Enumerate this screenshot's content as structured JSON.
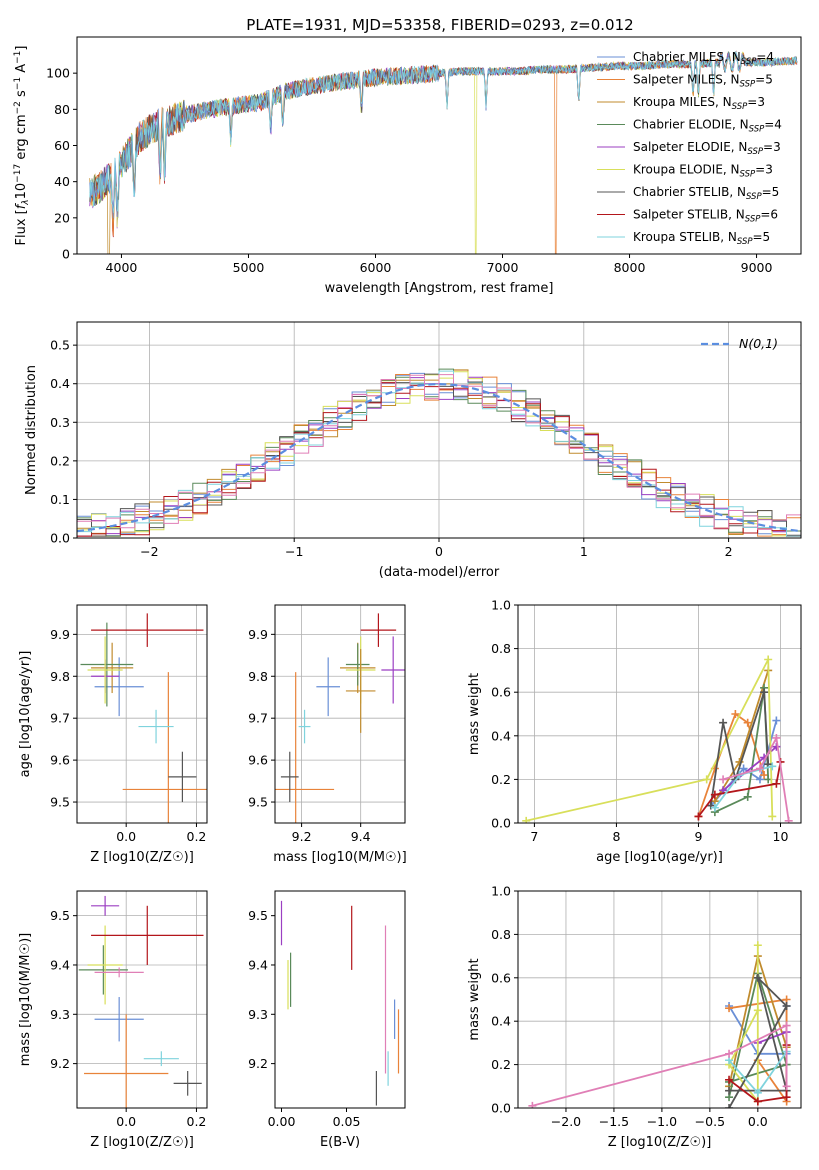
{
  "figure": {
    "title": "PLATE=1931, MJD=53358, FIBERID=0293, z=0.012"
  },
  "series_styles": [
    {
      "name": "Chabrier MILES, N_SSP=4",
      "color": "#6a8fd6"
    },
    {
      "name": "Salpeter MILES, N_SSP=5",
      "color": "#e8833a"
    },
    {
      "name": "Kroupa MILES, N_SSP=3",
      "color": "#c08b2e"
    },
    {
      "name": "Chabrier ELODIE, N_SSP=4",
      "color": "#5a8a5a"
    },
    {
      "name": "Salpeter ELODIE, N_SSP=3",
      "color": "#9b3fc2"
    },
    {
      "name": "Kroupa ELODIE, N_SSP=3",
      "color": "#d8df5a"
    },
    {
      "name": "Chabrier STELIB, N_SSP=5",
      "color": "#555555"
    },
    {
      "name": "Salpeter STELIB, N_SSP=6",
      "color": "#b3161b"
    },
    {
      "name": "Kroupa STELIB, N_SSP=5",
      "color": "#7fd3dd"
    }
  ],
  "chart_data": [
    {
      "id": "spectrum",
      "type": "line",
      "title": "PLATE=1931, MJD=53358, FIBERID=0293, z=0.012",
      "xlabel": "wavelength [Angstrom, rest frame]",
      "ylabel": "Flux [f_λ 10^-17 erg cm^-2 s^-1 A^-1]",
      "xlim": [
        3650,
        9350
      ],
      "ylim": [
        0,
        120
      ],
      "xticks": [
        4000,
        5000,
        6000,
        7000,
        8000,
        9000
      ],
      "yticks": [
        0,
        20,
        40,
        60,
        80,
        100
      ],
      "legend_position": "top-right",
      "legend": [
        "Chabrier MILES, N_SSP=4",
        "Salpeter MILES, N_SSP=5",
        "Kroupa MILES, N_SSP=3",
        "Chabrier ELODIE, N_SSP=4",
        "Salpeter ELODIE, N_SSP=3",
        "Kroupa ELODIE, N_SSP=3",
        "Chabrier STELIB, N_SSP=5",
        "Salpeter STELIB, N_SSP=6",
        "Kroupa STELIB, N_SSP=5"
      ],
      "continuum": {
        "x": [
          3750,
          3850,
          3950,
          4050,
          4150,
          4300,
          4500,
          4700,
          4900,
          5100,
          5300,
          5500,
          5700,
          5900,
          6100,
          6300,
          6500,
          6700,
          6900,
          7100,
          7300,
          7500,
          7700,
          7900,
          8100,
          8300,
          8500,
          8700,
          8900,
          9100,
          9300
        ],
        "y": [
          33,
          38,
          45,
          55,
          65,
          72,
          77,
          80,
          82,
          84,
          90,
          93,
          95,
          97,
          98,
          99,
          100,
          101,
          101,
          101,
          102,
          102,
          103,
          104,
          104,
          105,
          105,
          106,
          106,
          106,
          107
        ]
      },
      "dropouts": [
        {
          "x": 3900,
          "series": "Kroupa MILES, N_SSP=3"
        },
        {
          "x": 6790,
          "series": "Kroupa ELODIE, N_SSP=3"
        },
        {
          "x": 7420,
          "series": "Salpeter MILES, N_SSP=5"
        }
      ]
    },
    {
      "id": "residuals",
      "type": "histogram",
      "xlabel": "(data-model)/error",
      "ylabel": "Normed distribution",
      "xlim": [
        -2.5,
        2.5
      ],
      "ylim": [
        0,
        0.56
      ],
      "xticks": [
        -2,
        -1,
        0,
        1,
        2
      ],
      "yticks": [
        0.0,
        0.1,
        0.2,
        0.3,
        0.4,
        0.5
      ],
      "grid": true,
      "bin_width": 0.1,
      "reference_curve": {
        "name": "N(0,1)",
        "style": "dashed",
        "color": "#5b8ee0"
      },
      "legend_position": "top-right"
    },
    {
      "id": "age_vs_Z",
      "type": "errorbar",
      "xlabel": "Z [log10(Z/Z☉)]",
      "ylabel": "age [log10(age/yr)]",
      "xlim": [
        -0.14,
        0.23
      ],
      "ylim": [
        9.45,
        9.97
      ],
      "xticks": [
        0.0,
        0.2
      ],
      "yticks": [
        9.5,
        9.6,
        9.7,
        9.8,
        9.9
      ],
      "grid": true,
      "points": [
        {
          "series": "Chabrier MILES, N_SSP=4",
          "x": -0.02,
          "xerr": 0.07,
          "y": 9.775,
          "yerr": 0.07
        },
        {
          "series": "Salpeter MILES, N_SSP=5",
          "x": 0.12,
          "xerr": 0.13,
          "y": 9.53,
          "yerr": 0.28
        },
        {
          "series": "Kroupa MILES, N_SSP=3",
          "x": -0.04,
          "xerr": 0.06,
          "y": 9.82,
          "yerr": 0.06
        },
        {
          "series": "Chabrier ELODIE, N_SSP=4",
          "x": -0.055,
          "xerr": 0.075,
          "y": 9.828,
          "yerr": 0.1
        },
        {
          "series": "Salpeter ELODIE, N_SSP=3",
          "x": -0.06,
          "xerr": 0.04,
          "y": 9.8,
          "yerr": 0.04
        },
        {
          "series": "Kroupa ELODIE, N_SSP=3",
          "x": -0.06,
          "xerr": 0.05,
          "y": 9.815,
          "yerr": 0.08
        },
        {
          "series": "Chabrier STELIB, N_SSP=5",
          "x": 0.16,
          "xerr": 0.04,
          "y": 9.56,
          "yerr": 0.06
        },
        {
          "series": "Salpeter STELIB, N_SSP=6",
          "x": 0.06,
          "xerr": 0.16,
          "y": 9.91,
          "yerr": 0.04
        },
        {
          "series": "Kroupa STELIB, N_SSP=5",
          "x": 0.085,
          "xerr": 0.05,
          "y": 9.68,
          "yerr": 0.04
        }
      ]
    },
    {
      "id": "age_vs_mass",
      "type": "errorbar",
      "xlabel": "mass [log10(M/M☉)]",
      "ylabel": "",
      "xlim": [
        9.11,
        9.55
      ],
      "ylim": [
        9.45,
        9.97
      ],
      "xticks": [
        9.2,
        9.4
      ],
      "yticks": [
        9.5,
        9.6,
        9.7,
        9.8,
        9.9
      ],
      "grid": true,
      "points": [
        {
          "series": "Chabrier MILES, N_SSP=4",
          "x": 9.29,
          "xerr": 0.04,
          "y": 9.775,
          "yerr": 0.07
        },
        {
          "series": "Salpeter MILES, N_SSP=5",
          "x": 9.18,
          "xerr": 0.13,
          "y": 9.53,
          "yerr": 0.28
        },
        {
          "series": "Kroupa MILES, N_SSP=3",
          "x": 9.39,
          "xerr": 0.06,
          "y": 9.82,
          "yerr": 0.06
        },
        {
          "series": "Chabrier ELODIE, N_SSP=4",
          "x": 9.39,
          "xerr": 0.04,
          "y": 9.828,
          "yerr": 0.05
        },
        {
          "series": "Salpeter ELODIE, N_SSP=3",
          "x": 9.51,
          "xerr": 0.04,
          "y": 9.815,
          "yerr": 0.08
        },
        {
          "series": "Kroupa ELODIE, N_SSP=3",
          "x": 9.4,
          "xerr": 0.05,
          "y": 9.815,
          "yerr": 0.08
        },
        {
          "series": "Chabrier STELIB, N_SSP=5",
          "x": 9.16,
          "xerr": 0.03,
          "y": 9.56,
          "yerr": 0.06
        },
        {
          "series": "Salpeter STELIB, N_SSP=6",
          "x": 9.46,
          "xerr": 0.06,
          "y": 9.91,
          "yerr": 0.04
        },
        {
          "series": "Kroupa STELIB, N_SSP=5",
          "x": 9.21,
          "xerr": 0.02,
          "y": 9.68,
          "yerr": 0.04
        },
        {
          "series": "Kroupa MILES, N_SSP=3",
          "x": 9.4,
          "xerr": 0.05,
          "y": 9.765,
          "yerr": 0.1
        }
      ]
    },
    {
      "id": "weight_vs_age",
      "type": "line",
      "xlabel": "age [log10(age/yr)]",
      "ylabel": "mass weight",
      "xlim": [
        6.8,
        10.25
      ],
      "ylim": [
        0,
        1
      ],
      "xticks": [
        7,
        8,
        9,
        10
      ],
      "yticks": [
        0.0,
        0.2,
        0.4,
        0.6,
        0.8,
        1.0
      ],
      "grid": true,
      "series": [
        {
          "name": "Chabrier MILES, N_SSP=4",
          "x": [
            9.15,
            9.55,
            9.75,
            9.95
          ],
          "y": [
            0.08,
            0.25,
            0.2,
            0.47
          ]
        },
        {
          "name": "Salpeter MILES, N_SSP=5",
          "x": [
            9.0,
            9.2,
            9.45,
            9.6,
            9.8
          ],
          "y": [
            0.03,
            0.25,
            0.5,
            0.46,
            0.22
          ]
        },
        {
          "name": "Kroupa MILES, N_SSP=3",
          "x": [
            9.2,
            9.5,
            9.85
          ],
          "y": [
            0.1,
            0.28,
            0.7
          ]
        },
        {
          "name": "Chabrier ELODIE, N_SSP=4",
          "x": [
            9.2,
            9.6,
            9.8,
            9.85
          ],
          "y": [
            0.05,
            0.12,
            0.62,
            0.2
          ]
        },
        {
          "name": "Salpeter ELODIE, N_SSP=3",
          "x": [
            9.3,
            9.8,
            9.95
          ],
          "y": [
            0.15,
            0.3,
            0.35
          ]
        },
        {
          "name": "Kroupa ELODIE, N_SSP=3",
          "x": [
            6.9,
            9.1,
            9.85,
            9.9
          ],
          "y": [
            0.01,
            0.2,
            0.75,
            0.03
          ]
        },
        {
          "name": "Chabrier STELIB, N_SSP=5",
          "x": [
            9.15,
            9.3,
            9.45,
            9.8,
            9.85
          ],
          "y": [
            0.08,
            0.46,
            0.2,
            0.6,
            0.27
          ]
        },
        {
          "name": "Salpeter STELIB, N_SSP=6",
          "x": [
            9.0,
            9.2,
            9.95,
            10.0
          ],
          "y": [
            0.03,
            0.13,
            0.18,
            0.28
          ]
        },
        {
          "name": "Kroupa STELIB, N_SSP=5",
          "x": [
            9.2,
            9.5,
            9.9
          ],
          "y": [
            0.07,
            0.22,
            0.26
          ]
        },
        {
          "name": "pink",
          "x": [
            9.3,
            9.75,
            9.95,
            10.1
          ],
          "y": [
            0.2,
            0.25,
            0.39,
            0.01
          ]
        }
      ]
    },
    {
      "id": "mass_vs_Z",
      "type": "errorbar",
      "xlabel": "Z [log10(Z/Z☉)]",
      "ylabel": "mass [log10(M/M☉)]",
      "xlim": [
        -0.14,
        0.23
      ],
      "ylim": [
        9.11,
        9.55
      ],
      "xticks": [
        0.0,
        0.2
      ],
      "yticks": [
        9.2,
        9.3,
        9.4,
        9.5
      ],
      "grid": true,
      "points": [
        {
          "series": "Chabrier MILES, N_SSP=4",
          "x": -0.02,
          "xerr": 0.07,
          "y": 9.29,
          "yerr": 0.045
        },
        {
          "series": "Salpeter MILES, N_SSP=5",
          "x": 0.0,
          "xerr": 0.12,
          "y": 9.18,
          "yerr": 0.12
        },
        {
          "series": "Chabrier ELODIE, N_SSP=4",
          "x": -0.065,
          "xerr": 0.07,
          "y": 9.39,
          "yerr": 0.05
        },
        {
          "series": "Salpeter ELODIE, N_SSP=3",
          "x": -0.06,
          "xerr": 0.04,
          "y": 9.52,
          "yerr": 0.02
        },
        {
          "series": "Kroupa ELODIE, N_SSP=3",
          "x": -0.06,
          "xerr": 0.05,
          "y": 9.4,
          "yerr": 0.08
        },
        {
          "series": "Chabrier STELIB, N_SSP=5",
          "x": 0.175,
          "xerr": 0.04,
          "y": 9.16,
          "yerr": 0.025
        },
        {
          "series": "Salpeter STELIB, N_SSP=6",
          "x": 0.06,
          "xerr": 0.16,
          "y": 9.46,
          "yerr": 0.06
        },
        {
          "series": "Kroupa STELIB, N_SSP=5",
          "x": 0.1,
          "xerr": 0.05,
          "y": 9.21,
          "yerr": 0.015
        },
        {
          "series": "pink",
          "x": -0.02,
          "xerr": 0.07,
          "y": 9.385,
          "yerr": 0.01
        }
      ]
    },
    {
      "id": "mass_vs_EBV",
      "type": "errorbar",
      "xlabel": "E(B-V)",
      "ylabel": "",
      "xlim": [
        -0.005,
        0.095
      ],
      "ylim": [
        9.11,
        9.55
      ],
      "xticks": [
        0.0,
        0.05
      ],
      "yticks": [
        9.2,
        9.3,
        9.4,
        9.5
      ],
      "grid": false,
      "points": [
        {
          "series": "Chabrier MILES, N_SSP=4",
          "x": 0.087,
          "xerr": 0,
          "y": 9.29,
          "yerr": 0.04
        },
        {
          "series": "Salpeter MILES, N_SSP=5",
          "x": 0.09,
          "xerr": 0,
          "y": 9.245,
          "yerr": 0.065
        },
        {
          "series": "Chabrier ELODIE, N_SSP=4",
          "x": 0.007,
          "xerr": 0,
          "y": 9.37,
          "yerr": 0.055
        },
        {
          "series": "Salpeter ELODIE, N_SSP=3",
          "x": 0.0,
          "xerr": 0,
          "y": 9.485,
          "yerr": 0.045
        },
        {
          "series": "Kroupa ELODIE, N_SSP=3",
          "x": 0.005,
          "xerr": 0,
          "y": 9.36,
          "yerr": 0.05
        },
        {
          "series": "Chabrier STELIB, N_SSP=5",
          "x": 0.073,
          "xerr": 0,
          "y": 9.15,
          "yerr": 0.035
        },
        {
          "series": "Salpeter STELIB, N_SSP=6",
          "x": 0.054,
          "xerr": 0,
          "y": 9.455,
          "yerr": 0.065
        },
        {
          "series": "Kroupa STELIB, N_SSP=5",
          "x": 0.082,
          "xerr": 0,
          "y": 9.19,
          "yerr": 0.035
        },
        {
          "series": "pink",
          "x": 0.08,
          "xerr": 0,
          "y": 9.33,
          "yerr": 0.15
        }
      ]
    },
    {
      "id": "weight_vs_Z",
      "type": "line",
      "xlabel": "Z [log10(Z/Z☉)]",
      "ylabel": "mass weight",
      "xlim": [
        -2.5,
        0.45
      ],
      "ylim": [
        0,
        1
      ],
      "xticks": [
        -2.0,
        -1.5,
        -1.0,
        -0.5,
        0.0
      ],
      "yticks": [
        0.0,
        0.2,
        0.4,
        0.6,
        0.8,
        1.0
      ],
      "grid": true,
      "series": [
        {
          "name": "Chabrier MILES, N_SSP=4",
          "x": [
            -0.3,
            0.0,
            0.3,
            0.3
          ],
          "y": [
            0.47,
            0.25,
            0.25,
            0.47
          ]
        },
        {
          "name": "Salpeter MILES, N_SSP=5",
          "x": [
            -0.3,
            0.3,
            0.3,
            0.0
          ],
          "y": [
            0.46,
            0.5,
            0.03,
            0.22
          ]
        },
        {
          "name": "Kroupa MILES, N_SSP=3",
          "x": [
            -0.3,
            0.0,
            0.3
          ],
          "y": [
            0.1,
            0.7,
            0.28
          ]
        },
        {
          "name": "Chabrier ELODIE, N_SSP=4",
          "x": [
            -0.3,
            0.0,
            0.3,
            -0.3
          ],
          "y": [
            0.05,
            0.62,
            0.2,
            0.12
          ]
        },
        {
          "name": "Salpeter ELODIE, N_SSP=3",
          "x": [
            0.0,
            0.3
          ],
          "y": [
            0.3,
            0.35
          ]
        },
        {
          "name": "Kroupa ELODIE, N_SSP=3",
          "x": [
            0.0,
            0.0,
            -0.3,
            0.0
          ],
          "y": [
            0.75,
            0.03,
            0.2,
            0.45
          ]
        },
        {
          "name": "Chabrier STELIB, N_SSP=5",
          "x": [
            -0.3,
            0.3,
            0.0,
            0.3,
            -0.3
          ],
          "y": [
            0.0,
            0.47,
            0.6,
            0.08,
            0.08
          ]
        },
        {
          "name": "Salpeter STELIB, N_SSP=6",
          "x": [
            -0.3,
            0.0,
            0.3,
            0.3
          ],
          "y": [
            0.13,
            0.03,
            0.05,
            0.29
          ]
        },
        {
          "name": "Kroupa STELIB, N_SSP=5",
          "x": [
            -0.3,
            0.0,
            0.3
          ],
          "y": [
            0.22,
            0.07,
            0.26
          ]
        },
        {
          "name": "pink",
          "x": [
            -2.35,
            -0.3,
            0.3,
            0.3
          ],
          "y": [
            0.01,
            0.25,
            0.38,
            0.1
          ]
        }
      ]
    }
  ]
}
